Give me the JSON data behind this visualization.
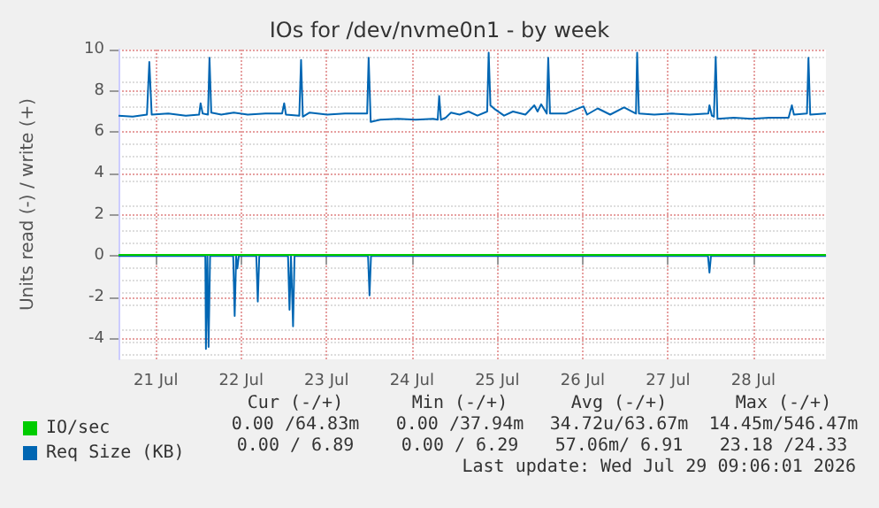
{
  "chart_data": {
    "type": "line",
    "title": "IOs for /dev/nvme0n1 - by week",
    "ylabel": "Units read (-) / write (+)",
    "xlim": [
      "2026-07-21T01:30",
      "2026-07-29T08:25"
    ],
    "xticks": [
      {
        "value": "2026-07-21T12:00",
        "label": "21 Jul"
      },
      {
        "value": "2026-07-22T12:00",
        "label": "22 Jul"
      },
      {
        "value": "2026-07-23T12:00",
        "label": "23 Jul"
      },
      {
        "value": "2026-07-24T12:00",
        "label": "24 Jul"
      },
      {
        "value": "2026-07-25T12:00",
        "label": "25 Jul"
      },
      {
        "value": "2026-07-26T12:00",
        "label": "26 Jul"
      },
      {
        "value": "2026-07-27T12:00",
        "label": "27 Jul"
      },
      {
        "value": "2026-07-28T12:00",
        "label": "28 Jul"
      }
    ],
    "ylim": [
      -5,
      10
    ],
    "yticks": [
      -4,
      -2,
      0,
      2,
      4,
      6,
      8,
      10
    ],
    "grid": true,
    "legend": "bottom left",
    "marker": "none",
    "line_style": "solid",
    "series": [
      {
        "name": "IO/sec",
        "color": "#00cc00",
        "x": [
          "2026-07-21T01:30",
          "2026-07-29T08:25"
        ],
        "values": [
          0.06,
          0.06
        ]
      },
      {
        "name": "Req Size (KB)",
        "color": "#0066b3",
        "x": [
          "2026-07-21T01:30",
          "2026-07-21T05:30",
          "2026-07-21T09:30",
          "2026-07-21T10:10",
          "2026-07-21T10:50",
          "2026-07-21T15:30",
          "2026-07-21T20:25",
          "2026-07-22T00:10",
          "2026-07-22T00:35",
          "2026-07-22T01:10",
          "2026-07-22T02:40",
          "2026-07-22T03:05",
          "2026-07-22T03:35",
          "2026-07-22T06:25",
          "2026-07-22T09:55",
          "2026-07-22T13:50",
          "2026-07-22T18:50",
          "2026-07-22T23:30",
          "2026-07-23T00:05",
          "2026-07-23T00:35",
          "2026-07-23T04:20",
          "2026-07-23T04:50",
          "2026-07-23T05:20",
          "2026-07-23T07:15",
          "2026-07-23T12:10",
          "2026-07-23T17:10",
          "2026-07-23T23:25",
          "2026-07-23T23:50",
          "2026-07-24T00:25",
          "2026-07-24T03:05",
          "2026-07-24T08:05",
          "2026-07-24T13:05",
          "2026-07-24T18:00",
          "2026-07-24T19:15",
          "2026-07-24T19:40",
          "2026-07-24T20:10",
          "2026-07-24T21:30",
          "2026-07-24T23:00",
          "2026-07-25T01:25",
          "2026-07-25T03:55",
          "2026-07-25T06:25",
          "2026-07-25T09:10",
          "2026-07-25T09:35",
          "2026-07-25T10:05",
          "2026-07-25T11:25",
          "2026-07-25T13:55",
          "2026-07-25T16:25",
          "2026-07-25T19:55",
          "2026-07-25T22:25",
          "2026-07-25T23:20",
          "2026-07-26T00:20",
          "2026-07-26T01:55",
          "2026-07-26T02:20",
          "2026-07-26T02:50",
          "2026-07-26T07:15",
          "2026-07-26T12:15",
          "2026-07-26T13:15",
          "2026-07-26T16:15",
          "2026-07-26T19:45",
          "2026-07-26T23:40",
          "2026-07-27T03:00",
          "2026-07-27T03:20",
          "2026-07-27T03:50",
          "2026-07-27T08:10",
          "2026-07-27T13:05",
          "2026-07-27T18:05",
          "2026-07-27T23:20",
          "2026-07-27T23:40",
          "2026-07-28T00:20",
          "2026-07-28T00:55",
          "2026-07-28T01:25",
          "2026-07-28T01:55",
          "2026-07-28T06:30",
          "2026-07-28T11:30",
          "2026-07-28T16:30",
          "2026-07-28T21:55",
          "2026-07-28T22:50",
          "2026-07-28T23:25",
          "2026-07-29T03:05",
          "2026-07-29T03:30",
          "2026-07-29T04:00",
          "2026-07-29T08:25"
        ],
        "values": [
          6.8,
          6.75,
          6.85,
          9.4,
          6.85,
          6.9,
          6.8,
          6.85,
          7.4,
          6.9,
          6.85,
          9.6,
          6.95,
          6.85,
          6.95,
          6.85,
          6.9,
          6.9,
          7.4,
          6.85,
          6.8,
          9.5,
          6.75,
          6.95,
          6.85,
          6.9,
          6.9,
          9.6,
          6.5,
          6.6,
          6.65,
          6.6,
          6.65,
          6.6,
          7.75,
          6.6,
          6.7,
          6.95,
          6.85,
          7.0,
          6.8,
          7.0,
          9.85,
          7.3,
          7.1,
          6.8,
          7.0,
          6.85,
          7.3,
          7.0,
          7.35,
          6.9,
          9.6,
          6.9,
          6.9,
          7.25,
          6.85,
          7.15,
          6.85,
          7.2,
          6.9,
          9.85,
          6.9,
          6.85,
          6.9,
          6.85,
          6.9,
          7.3,
          6.8,
          6.75,
          9.65,
          6.65,
          6.7,
          6.65,
          6.7,
          6.7,
          7.3,
          6.85,
          6.9,
          9.6,
          6.85,
          6.9
        ]
      },
      {
        "color": "#0066b3",
        "x": [
          "2026-07-21T01:30",
          "2026-07-22T01:55",
          "2026-07-22T02:05",
          "2026-07-22T02:30",
          "2026-07-22T02:50",
          "2026-07-22T03:15",
          "2026-07-22T09:45",
          "2026-07-22T10:10",
          "2026-07-22T10:35",
          "2026-07-22T10:55",
          "2026-07-22T11:20",
          "2026-07-22T16:15",
          "2026-07-22T16:40",
          "2026-07-22T17:05",
          "2026-07-23T01:10",
          "2026-07-23T01:35",
          "2026-07-23T02:00",
          "2026-07-23T02:35",
          "2026-07-23T03:00",
          "2026-07-23T23:40",
          "2026-07-24T00:05",
          "2026-07-24T00:30",
          "2026-07-27T23:15",
          "2026-07-27T23:40",
          "2026-07-28T00:05",
          "2026-07-29T08:25"
        ],
        "values": [
          0,
          0,
          -4.5,
          0,
          -4.4,
          0,
          0,
          -2.9,
          0,
          -0.6,
          0,
          0,
          -2.2,
          0,
          0,
          -2.6,
          0,
          -3.4,
          0,
          0,
          -1.9,
          0,
          0,
          -0.8,
          0,
          0
        ]
      }
    ],
    "annotations": [
      "Cur (-/+)",
      "Min (-/+)",
      "Avg (-/+)",
      "Max (-/+)",
      "0.00 /64.83m",
      "0.00 /37.94m",
      "34.72u/63.67m",
      "14.45m/546.47m",
      "0.00 / 6.89",
      "0.00 / 6.29",
      "57.06m/ 6.91",
      "23.18 /24.33",
      "Last update: Wed Jul 29 09:06:01 2026"
    ]
  }
}
